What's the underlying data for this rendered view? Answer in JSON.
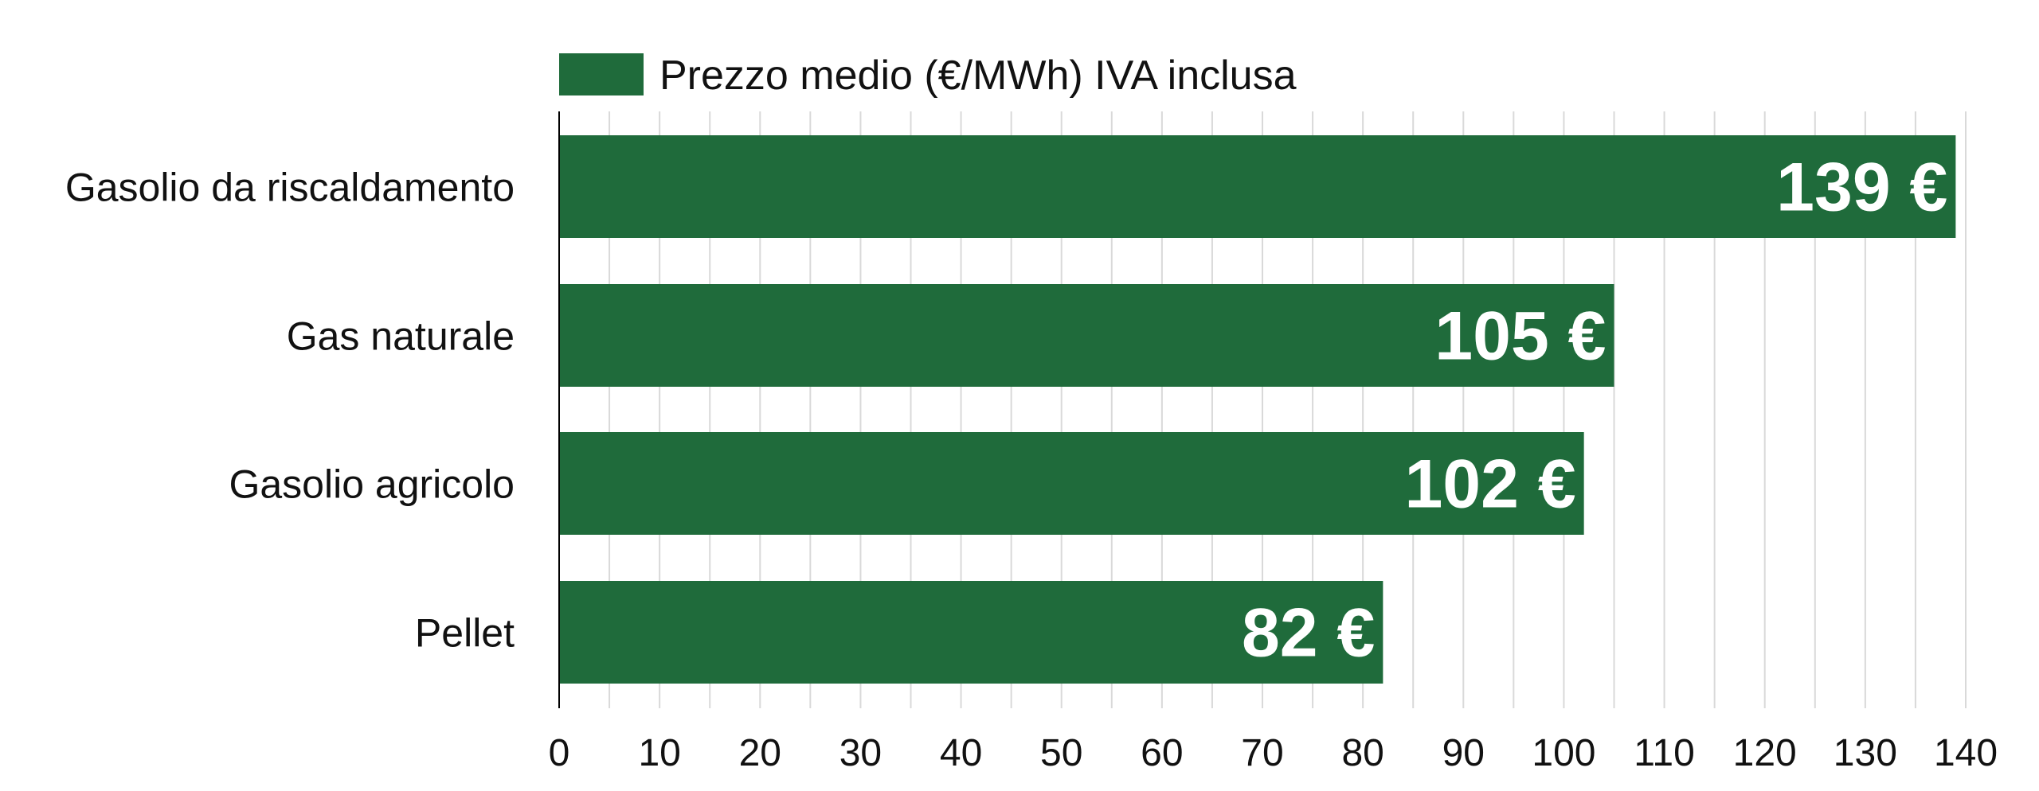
{
  "chart_data": {
    "type": "bar",
    "orientation": "horizontal",
    "categories": [
      "Gasolio da riscaldamento",
      "Gas naturale",
      "Gasolio agricolo",
      "Pellet"
    ],
    "series": [
      {
        "name": "Prezzo medio (€/MWh) IVA inclusa",
        "values": [
          139,
          105,
          102,
          82
        ],
        "data_labels": [
          "139 €",
          "105 €",
          "102 €",
          "82 €"
        ]
      }
    ],
    "title": "",
    "xlabel": "",
    "ylabel": "",
    "xlim": [
      0,
      140
    ],
    "x_ticks": [
      0,
      10,
      20,
      30,
      40,
      50,
      60,
      70,
      80,
      90,
      100,
      110,
      120,
      130,
      140
    ],
    "x_minor_step": 5,
    "grid": true,
    "legend_position": "top",
    "colors": {
      "bar": "#1f6b3b",
      "grid": "#d9d9d9",
      "axis": "#000000",
      "data_label": "#ffffff"
    }
  }
}
